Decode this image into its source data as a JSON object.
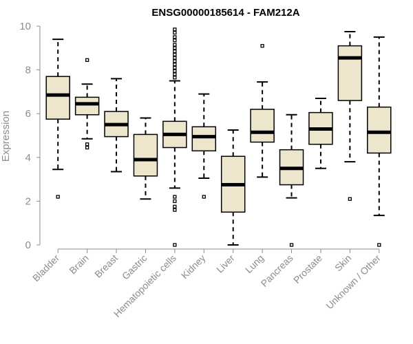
{
  "chart_data": {
    "type": "boxplot",
    "title": "ENSG00000185614 - FAM212A",
    "xlabel": "",
    "ylabel": "Expression",
    "ylim": [
      0,
      10
    ],
    "yticks": [
      0,
      2,
      4,
      6,
      8,
      10
    ],
    "colors": {
      "box_fill": "#ede6cc",
      "box_stroke": "#000000",
      "axis": "#8c8c8c"
    },
    "categories": [
      "Bladder",
      "Brain",
      "Breast",
      "Gastric",
      "Hematopoietic cells",
      "Kidney",
      "Liver",
      "Lung",
      "Pancreas",
      "Prostate",
      "Skin",
      "Unknown / Other"
    ],
    "boxes": [
      {
        "category": "Bladder",
        "whisker_low": 3.45,
        "q1": 5.75,
        "median": 6.85,
        "q3": 7.7,
        "whisker_high": 9.4,
        "outliers": [
          2.2
        ]
      },
      {
        "category": "Brain",
        "whisker_low": 4.85,
        "q1": 5.95,
        "median": 6.45,
        "q3": 6.75,
        "whisker_high": 7.35,
        "outliers": [
          8.45,
          4.6,
          4.45
        ]
      },
      {
        "category": "Breast",
        "whisker_low": 3.35,
        "q1": 4.95,
        "median": 5.5,
        "q3": 6.1,
        "whisker_high": 7.6,
        "outliers": []
      },
      {
        "category": "Gastric",
        "whisker_low": 2.1,
        "q1": 3.15,
        "median": 3.9,
        "q3": 5.05,
        "whisker_high": 5.8,
        "outliers": []
      },
      {
        "category": "Hematopoietic cells",
        "whisker_low": 2.6,
        "q1": 4.45,
        "median": 5.05,
        "q3": 5.65,
        "whisker_high": 7.5,
        "outliers": [
          9.85,
          9.7,
          9.5,
          9.35,
          9.15,
          9.0,
          8.85,
          8.7,
          8.55,
          8.4,
          8.25,
          8.1,
          7.95,
          7.8,
          7.65,
          2.2,
          2.0,
          1.75,
          1.6,
          0.0
        ]
      },
      {
        "category": "Kidney",
        "whisker_low": 3.05,
        "q1": 4.3,
        "median": 4.95,
        "q3": 5.4,
        "whisker_high": 6.9,
        "outliers": [
          2.2
        ]
      },
      {
        "category": "Liver",
        "whisker_low": 0.0,
        "q1": 1.5,
        "median": 2.75,
        "q3": 4.05,
        "whisker_high": 5.25,
        "outliers": []
      },
      {
        "category": "Lung",
        "whisker_low": 3.1,
        "q1": 4.7,
        "median": 5.15,
        "q3": 6.2,
        "whisker_high": 7.45,
        "outliers": [
          9.1
        ]
      },
      {
        "category": "Pancreas",
        "whisker_low": 2.15,
        "q1": 2.75,
        "median": 3.5,
        "q3": 4.35,
        "whisker_high": 5.95,
        "outliers": [
          0.0
        ]
      },
      {
        "category": "Prostate",
        "whisker_low": 3.5,
        "q1": 4.6,
        "median": 5.3,
        "q3": 6.05,
        "whisker_high": 6.7,
        "outliers": []
      },
      {
        "category": "Skin",
        "whisker_low": 3.8,
        "q1": 6.6,
        "median": 8.55,
        "q3": 9.1,
        "whisker_high": 9.75,
        "outliers": [
          2.1
        ]
      },
      {
        "category": "Unknown / Other",
        "whisker_low": 1.35,
        "q1": 4.2,
        "median": 5.15,
        "q3": 6.3,
        "whisker_high": 9.5,
        "outliers": [
          0.0
        ]
      }
    ]
  }
}
